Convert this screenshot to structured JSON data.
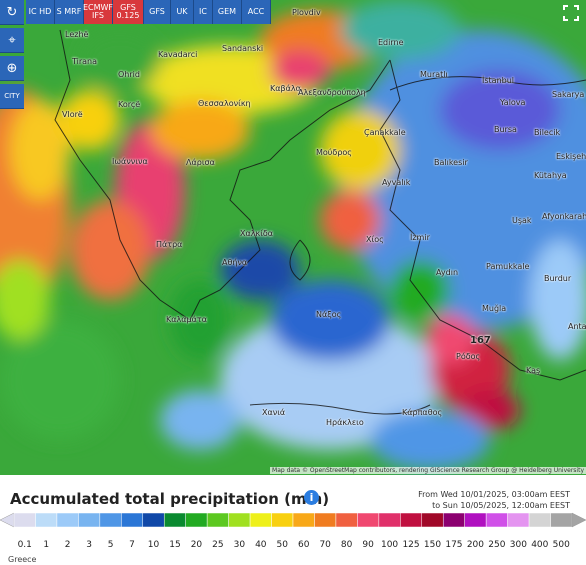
{
  "toolbar": {
    "side": [
      "CITY"
    ],
    "models": [
      "IC HD",
      "S MRF",
      "ECMWF IFS",
      "GFS 0.125",
      "GFS",
      "UK",
      "IC",
      "GEM",
      "ACC"
    ]
  },
  "map_labels": [
    "Lezhë",
    "Tirana",
    "Ohrid",
    "Korçë",
    "Vlorë",
    "Kavadarci",
    "Sandanski",
    "Plovdiv",
    "Edirne",
    "Muratlı",
    "İstanbul",
    "Sakarya",
    "Yalova",
    "Bursa",
    "Bilecik",
    "Eskişehir",
    "Kütahya",
    "Balıkesir",
    "Çanakkale",
    "Ayvalık",
    "Uşak",
    "Afyonkarahisar",
    "İzmir",
    "Aydın",
    "Pamukkale",
    "Burdur",
    "Muğla",
    "Anta",
    "Kaş",
    "Ρόδος",
    "Κάρπαθος",
    "Ηράκλειο",
    "Χανιά",
    "Νάξος",
    "Αθήνα",
    "Χαλκίδα",
    "Πάτρα",
    "Λάρισα",
    "Ιωάννινα",
    "Θεσσαλονίκη",
    "Καβάλα",
    "Αλεξανδρούπολη",
    "Μούδρος",
    "Καλαμάτα",
    "Χίος",
    "167"
  ],
  "attribution": "Map data © OpenStreetMap contributors, rendering GIScience Research Group @ Heidelberg University",
  "legend": {
    "title": "Accumulated total precipitation (mm)",
    "from": "From Wed 10/01/2025, 03:00am EEST",
    "to": "to Sun 10/05/2025, 12:00am EEST",
    "region": "Greece",
    "items": [
      {
        "value": 0.1,
        "color": "#dcdcee"
      },
      {
        "value": 1,
        "color": "#bcdcf8"
      },
      {
        "value": 2,
        "color": "#9ccaf8"
      },
      {
        "value": 3,
        "color": "#78b4f0"
      },
      {
        "value": 5,
        "color": "#4f96e6"
      },
      {
        "value": 7,
        "color": "#2a76d6"
      },
      {
        "value": 10,
        "color": "#1048a8"
      },
      {
        "value": 15,
        "color": "#0a8a30"
      },
      {
        "value": 20,
        "color": "#22aa22"
      },
      {
        "value": 25,
        "color": "#5cc820"
      },
      {
        "value": 30,
        "color": "#a0e020"
      },
      {
        "value": 40,
        "color": "#eef01a"
      },
      {
        "value": 50,
        "color": "#f8d010"
      },
      {
        "value": 60,
        "color": "#f8a818"
      },
      {
        "value": 70,
        "color": "#f07c20"
      },
      {
        "value": 80,
        "color": "#f06040"
      },
      {
        "value": 90,
        "color": "#f04870"
      },
      {
        "value": 100,
        "color": "#e0306a"
      },
      {
        "value": 125,
        "color": "#c01040"
      },
      {
        "value": 150,
        "color": "#a00828"
      },
      {
        "value": 175,
        "color": "#8c0070"
      },
      {
        "value": 200,
        "color": "#b010c0"
      },
      {
        "value": 250,
        "color": "#d050e8"
      },
      {
        "value": 300,
        "color": "#e494f0"
      },
      {
        "value": 400,
        "color": "#d4d4d4"
      },
      {
        "value": 500,
        "color": "#a4a4a4"
      }
    ]
  }
}
